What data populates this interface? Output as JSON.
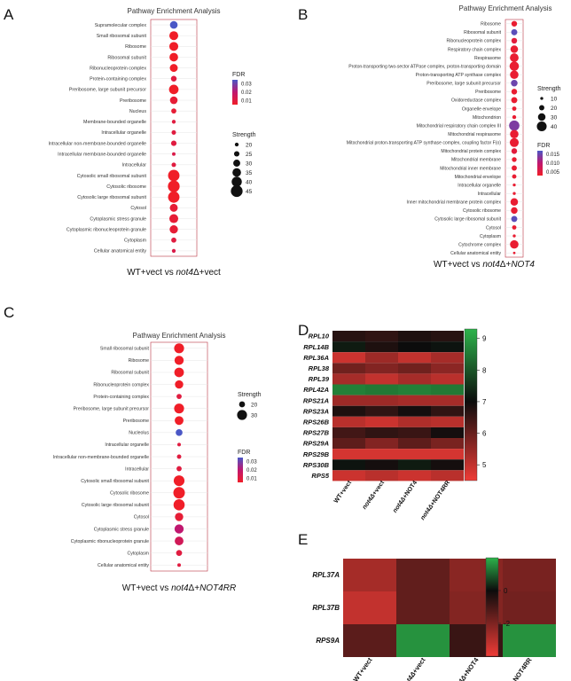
{
  "chart_data": [
    {
      "panel": "A",
      "type": "scatter",
      "title": "Pathway Enrichment Analysis",
      "xlabel_parts": [
        "WT+vect vs ",
        "not4",
        "Δ+vect"
      ],
      "categories": [
        "Supramolecular complex",
        "Small ribosomal subunit",
        "Ribosome",
        "Ribosomal subunit",
        "Ribonucleoprotein complex",
        "Protein-containing complex",
        "Preribosome, large subunit precursor",
        "Preribosome",
        "Nucleus",
        "Membrane-bounded organelle",
        "Intracellular organelle",
        "Intracellular non-membrane-bounded organelle",
        "Intracellular membrane-bounded organelle",
        "Intracellular",
        "Cytosolic small ribosomal subunit",
        "Cytosolic ribosome",
        "Cytosolic large ribosomal subunit",
        "Cytosol",
        "Cytoplasmic stress granule",
        "Cytoplasmic ribonucleoprotein granule",
        "Cytoplasm",
        "Cellular anatomical entity"
      ],
      "strength": [
        32,
        36,
        36,
        35,
        33,
        26,
        38,
        32,
        24,
        20,
        22,
        25,
        19,
        22,
        44,
        45,
        44,
        33,
        36,
        34,
        24,
        20
      ],
      "fdr": [
        0.035,
        0.005,
        0.005,
        0.005,
        0.005,
        0.01,
        0.005,
        0.008,
        0.008,
        0.01,
        0.01,
        0.01,
        0.012,
        0.01,
        0.005,
        0.005,
        0.005,
        0.008,
        0.008,
        0.008,
        0.01,
        0.012
      ],
      "fdr_legend": {
        "title": "FDR",
        "ticks": [
          "0.03",
          "0.02",
          "0.01"
        ],
        "values": [
          0.03,
          0.02,
          0.01
        ],
        "range": [
          0.005,
          0.035
        ]
      },
      "strength_legend": {
        "title": "Strength",
        "values": [
          20,
          25,
          30,
          35,
          40,
          45
        ]
      }
    },
    {
      "panel": "B",
      "type": "scatter",
      "title": "Pathway Enrichment Analysis",
      "xlabel_parts": [
        "WT+vect vs ",
        "not4",
        "Δ+",
        "NOT4"
      ],
      "categories": [
        "Ribosome",
        "Ribosomal subunit",
        "Ribonucleoprotein complex",
        "Respiratory chain complex",
        "Respirasome",
        "Proton-transporting two-sector ATPase complex, proton-transporting domain",
        "Proton-transporting ATP synthase complex",
        "Preribosome, large subunit precursor",
        "Preribosome",
        "Oxidoreductase complex",
        "Organelle envelope",
        "Mitochondrion",
        "Mitochondrial respiratory chain complex III",
        "Mitochondrial respirasome",
        "Mitochondrial proton-transporting ATP synthase complex, coupling factor F(o)",
        "Mitochondrial protein complex",
        "Mitochondrial membrane",
        "Mitochondrial inner membrane",
        "Mitochondrial envelope",
        "Intracellular organelle",
        "Intracellular",
        "Inner mitochondrial membrane protein complex",
        "Cytosolic ribosome",
        "Cytosolic large ribosomal subunit",
        "Cytosol",
        "Cytoplasm",
        "Cytochrome complex",
        "Cellular anatomical entity"
      ],
      "strength": [
        22,
        24,
        22,
        30,
        35,
        38,
        34,
        26,
        22,
        24,
        16,
        14,
        42,
        34,
        36,
        22,
        18,
        20,
        16,
        10,
        10,
        30,
        26,
        24,
        16,
        10,
        34,
        8
      ],
      "fdr": [
        0.004,
        0.016,
        0.005,
        0.004,
        0.004,
        0.004,
        0.004,
        0.015,
        0.004,
        0.004,
        0.004,
        0.004,
        0.014,
        0.004,
        0.004,
        0.005,
        0.004,
        0.004,
        0.004,
        0.004,
        0.004,
        0.004,
        0.004,
        0.016,
        0.004,
        0.004,
        0.004,
        0.004
      ],
      "fdr_legend": {
        "title": "FDR",
        "ticks": [
          "0.015",
          "0.010",
          "0.005"
        ],
        "values": [
          0.015,
          0.01,
          0.005
        ],
        "range": [
          0.003,
          0.017
        ]
      },
      "strength_legend": {
        "title": "Strength",
        "values": [
          10,
          20,
          30,
          40
        ]
      }
    },
    {
      "panel": "C",
      "type": "scatter",
      "title": "Pathway Enrichment Analysis",
      "xlabel_parts": [
        "WT+vect vs ",
        "not4",
        "Δ+",
        "NOT4RR"
      ],
      "categories": [
        "Small ribosomal subunit",
        "Ribosome",
        "Ribosomal subunit",
        "Ribonucleoprotein complex",
        "Protein-containing complex",
        "Preribosome, large subunit precursor",
        "Preribosome",
        "Nucleolus",
        "Intracellular organelle",
        "Intracellular non-membrane-bounded organelle",
        "Intracellular",
        "Cytosolic small ribosomal subunit",
        "Cytosolic ribosome",
        "Cytosolic large ribosomal subunit",
        "Cytosol",
        "Cytoplasmic stress granule",
        "Cytoplasmic ribonucleoprotein granule",
        "Cytoplasm",
        "Cellular anatomical entity"
      ],
      "strength": [
        30,
        28,
        29,
        26,
        18,
        30,
        27,
        22,
        14,
        16,
        18,
        32,
        34,
        33,
        26,
        28,
        27,
        20,
        14
      ],
      "fdr": [
        0.005,
        0.005,
        0.005,
        0.005,
        0.01,
        0.005,
        0.005,
        0.035,
        0.01,
        0.01,
        0.01,
        0.005,
        0.005,
        0.005,
        0.008,
        0.02,
        0.015,
        0.01,
        0.01
      ],
      "fdr_legend": {
        "title": "FDR",
        "ticks": [
          "0.03",
          "0.02",
          "0.01"
        ],
        "values": [
          0.03,
          0.02,
          0.01
        ],
        "range": [
          0.005,
          0.035
        ]
      },
      "strength_legend": {
        "title": "Strength",
        "values": [
          20,
          30
        ]
      }
    },
    {
      "panel": "D",
      "type": "heatmap",
      "rows": [
        "RPL10",
        "RPL14B",
        "RPL36A",
        "RPL38",
        "RPL39",
        "RPL42A",
        "RPS21A",
        "RPS23A",
        "RPS26B",
        "RPS27B",
        "RPS29A",
        "RPS29B",
        "RPS30B",
        "RPS5"
      ],
      "columns": [
        "WT+vect",
        "not4Δ+vect",
        "not4Δ+NOT4",
        "not4Δ+NOT4RR"
      ],
      "values": [
        [
          6.7,
          6.6,
          6.8,
          6.7
        ],
        [
          7.2,
          6.8,
          7.0,
          7.1
        ],
        [
          4.9,
          5.4,
          5.0,
          5.3
        ],
        [
          5.9,
          5.7,
          5.9,
          5.6
        ],
        [
          5.3,
          5.0,
          5.3,
          5.1
        ],
        [
          8.6,
          8.5,
          8.6,
          8.5
        ],
        [
          5.4,
          5.4,
          5.3,
          5.3
        ],
        [
          6.8,
          6.6,
          6.9,
          6.6
        ],
        [
          5.1,
          4.9,
          5.2,
          5.1
        ],
        [
          6.4,
          6.6,
          6.5,
          6.9
        ],
        [
          6.1,
          5.7,
          6.1,
          5.8
        ],
        [
          4.8,
          4.8,
          4.8,
          4.8
        ],
        [
          7.1,
          6.9,
          7.2,
          6.9
        ],
        [
          4.9,
          5.1,
          4.9,
          5.1
        ]
      ],
      "scale": {
        "ticks": [
          9,
          8,
          7,
          6,
          5
        ],
        "range": [
          4.5,
          9.3
        ]
      }
    },
    {
      "panel": "E",
      "type": "heatmap",
      "rows": [
        "RPL37A",
        "RPL37B",
        "RPS9A"
      ],
      "columns": [
        "WT+vect",
        "not4Δ+vect",
        "not4Δ+NOT4",
        "not4Δ+NOT4RR"
      ],
      "values": [
        [
          -2.7,
          -1.5,
          -2.2,
          -1.9
        ],
        [
          -3.2,
          -1.5,
          -2.1,
          -1.8
        ],
        [
          -1.4,
          1.6,
          -0.8,
          1.6
        ]
      ],
      "scale": {
        "ticks": [
          0,
          -2
        ],
        "range": [
          -4,
          2
        ]
      }
    }
  ],
  "panel_letters": [
    "A",
    "B",
    "C",
    "D",
    "E"
  ],
  "colors": {
    "fdr_low": "#f01e28",
    "fdr_mid": "#c0176f",
    "fdr_high": "#4a57c6",
    "heat_low": "#ef3b36",
    "heat_mid": "#0c0c0c",
    "heat_high": "#2db34b",
    "grid": "#e6e6e6",
    "frame": "#bb3344"
  }
}
